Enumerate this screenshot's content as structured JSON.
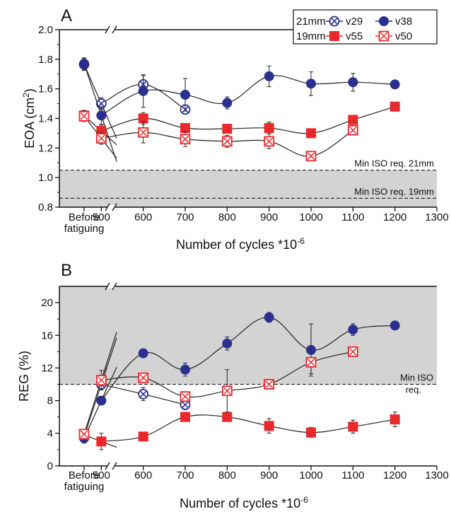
{
  "chart_data": [
    {
      "type": "line",
      "panel_label": "A",
      "xlabel": "Number of cycles *10",
      "xlabel_sup": "-6",
      "ylabel": "EOA (cm",
      "ylabel_sup": "2",
      "ylabel_end": ")",
      "categories_before": [
        "Before",
        "fatiguing"
      ],
      "x_ticks": [
        500,
        600,
        700,
        800,
        900,
        1000,
        1100,
        1200,
        1300
      ],
      "y_ticks": [
        "0.8",
        "1.0",
        "1.2",
        "1.4",
        "1.6",
        "1.8",
        "2.0"
      ],
      "ylim": [
        0.8,
        2.0
      ],
      "xlim": [
        400,
        1300
      ],
      "axis_break": true,
      "legend": {
        "position": "top-right",
        "group_labels": [
          "21mm",
          "19mm"
        ],
        "entries": [
          {
            "group": "21mm",
            "name": "v29"
          },
          {
            "group": "21mm",
            "name": "v38"
          },
          {
            "group": "19mm",
            "name": "v55"
          },
          {
            "group": "19mm",
            "name": "v50"
          }
        ]
      },
      "reference_lines": [
        {
          "y": 1.05,
          "label": "Min ISO req. 21mm"
        },
        {
          "y": 0.86,
          "label": "Min ISO req. 19mm"
        }
      ],
      "shaded_below": 1.05,
      "series": [
        {
          "name": "v29",
          "color": "#2b2f8f",
          "marker": "open-circle-x",
          "before": [
            1.765,
            0.04
          ],
          "points": [
            [
              500,
              1.5,
              0.04
            ],
            [
              600,
              1.63,
              0.06
            ],
            [
              700,
              1.46,
              0.03
            ]
          ]
        },
        {
          "name": "v38",
          "color": "#2b2f8f",
          "marker": "filled-circle",
          "before": [
            1.77,
            0.04
          ],
          "points": [
            [
              500,
              1.42,
              0.06
            ],
            [
              600,
              1.585,
              0.11
            ],
            [
              700,
              1.56,
              0.11
            ],
            [
              800,
              1.505,
              0.04
            ],
            [
              900,
              1.685,
              0.07
            ],
            [
              1000,
              1.635,
              0.08
            ],
            [
              1100,
              1.645,
              0.06
            ],
            [
              1200,
              1.63,
              0.02
            ]
          ]
        },
        {
          "name": "v55",
          "color": "#e8282b",
          "marker": "filled-square",
          "before": [
            1.42,
            0.035
          ],
          "points": [
            [
              500,
              1.315,
              0.04
            ],
            [
              600,
              1.4,
              0.04
            ],
            [
              700,
              1.335,
              0.03
            ],
            [
              800,
              1.33,
              0.03
            ],
            [
              900,
              1.335,
              0.04
            ],
            [
              1000,
              1.3,
              0.02
            ],
            [
              1100,
              1.39,
              0.03
            ],
            [
              1200,
              1.48,
              0.03
            ]
          ]
        },
        {
          "name": "v50",
          "color": "#e8282b",
          "marker": "open-square-x",
          "before": [
            1.415,
            0.035
          ],
          "points": [
            [
              500,
              1.265,
              0.04
            ],
            [
              600,
              1.305,
              0.07
            ],
            [
              700,
              1.26,
              0.05
            ],
            [
              800,
              1.245,
              0.04
            ],
            [
              900,
              1.245,
              0.05
            ],
            [
              1000,
              1.145,
              0.02
            ],
            [
              1100,
              1.32,
              0.02
            ]
          ]
        }
      ]
    },
    {
      "type": "line",
      "panel_label": "B",
      "xlabel": "Number of cycles *10",
      "xlabel_sup": "-6",
      "ylabel": "REG (%)",
      "categories_before": [
        "Before",
        "fatiguing"
      ],
      "x_ticks": [
        500,
        600,
        700,
        800,
        900,
        1000,
        1100,
        1200,
        1300
      ],
      "y_ticks": [
        "0",
        "4",
        "8",
        "12",
        "16",
        "20"
      ],
      "ylim": [
        0,
        22
      ],
      "xlim": [
        400,
        1300
      ],
      "axis_break": true,
      "reference_lines": [
        {
          "y": 10,
          "label_lines": [
            "Min ISO",
            "req."
          ]
        }
      ],
      "shaded_above": 10,
      "series": [
        {
          "name": "v29",
          "color": "#2b2f8f",
          "marker": "open-circle-x",
          "before": [
            3.6,
            0.6
          ],
          "points": [
            [
              500,
              10.0,
              0.6
            ],
            [
              600,
              8.8,
              0.8
            ],
            [
              700,
              7.5,
              0.6
            ]
          ]
        },
        {
          "name": "v38",
          "color": "#2b2f8f",
          "marker": "filled-circle",
          "before": [
            3.4,
            0.6
          ],
          "points": [
            [
              500,
              8.0,
              0.2
            ],
            [
              600,
              13.8,
              0.3
            ],
            [
              700,
              11.8,
              0.8
            ],
            [
              800,
              15.0,
              0.8
            ],
            [
              900,
              18.2,
              0.6
            ],
            [
              1000,
              14.2,
              3.2
            ],
            [
              1100,
              16.7,
              0.7
            ],
            [
              1200,
              17.2,
              0.3
            ]
          ]
        },
        {
          "name": "v55",
          "color": "#e8282b",
          "marker": "filled-square",
          "before": [
            3.8,
            0.6
          ],
          "points": [
            [
              500,
              3.0,
              1.0
            ],
            [
              600,
              3.6,
              0.3
            ],
            [
              700,
              6.0,
              0.4
            ],
            [
              800,
              6.0,
              0.3
            ],
            [
              900,
              4.9,
              0.9
            ],
            [
              1000,
              4.1,
              0.6
            ],
            [
              1100,
              4.8,
              0.8
            ],
            [
              1200,
              5.7,
              0.9
            ]
          ]
        },
        {
          "name": "v50",
          "color": "#e8282b",
          "marker": "open-square-x",
          "before": [
            3.9,
            0.5
          ],
          "points": [
            [
              500,
              10.5,
              1.2
            ],
            [
              600,
              10.8,
              0.3
            ],
            [
              700,
              8.5,
              0.6
            ],
            [
              800,
              9.2,
              2.6
            ],
            [
              900,
              10.0,
              0.6
            ],
            [
              1000,
              12.7,
              1.4
            ],
            [
              1100,
              14.0,
              0.3
            ]
          ]
        }
      ]
    }
  ]
}
